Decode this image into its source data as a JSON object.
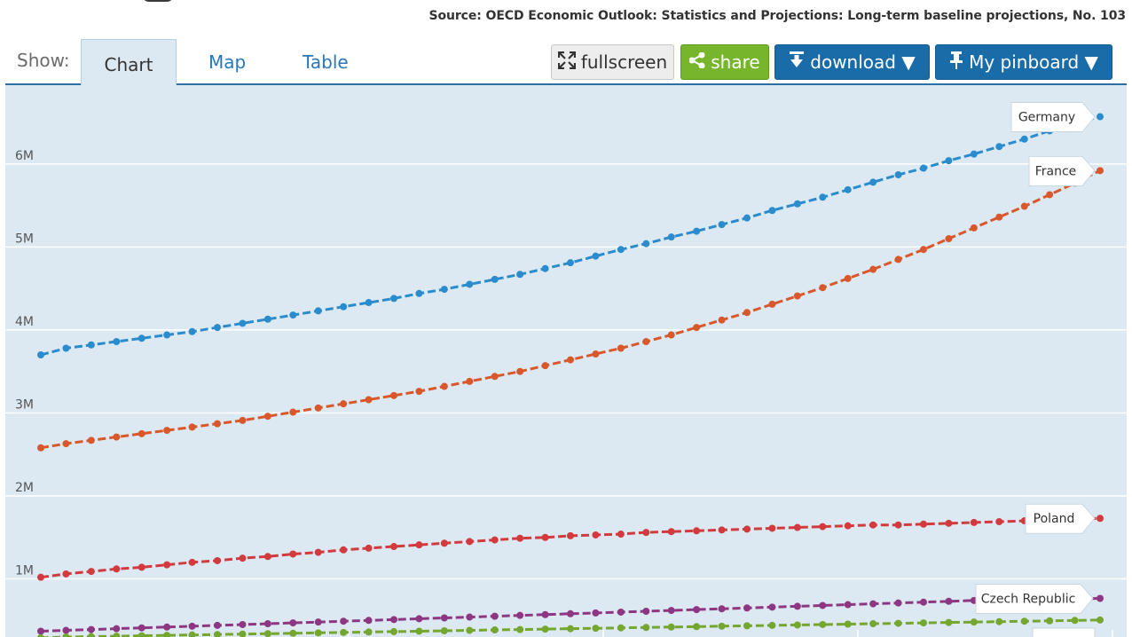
{
  "source": "Source: OECD Economic Outlook: Statistics and Projections: Long-term baseline projections, No. 103",
  "toolbar": {
    "show_label": "Show:",
    "tabs": [
      "Chart",
      "Map",
      "Table"
    ],
    "active_tab": "Chart",
    "fullscreen_label": "fullscreen",
    "share_label": "share",
    "download_label": "download ▼",
    "pinboard_label": "My pinboard ▼"
  },
  "colors": {
    "Germany": "#2a8ccd",
    "France": "#d9582b",
    "Poland": "#d23a3e",
    "Czech Republic": "#8d3782",
    "green-series": "#74a630",
    "plot_background": "#dce9f2",
    "gridline": "#ffffff",
    "download_button": "#1a6ca9",
    "share_button": "#77b52c"
  },
  "chart_data": {
    "type": "line",
    "yticks": [
      "1M",
      "2M",
      "3M",
      "4M",
      "5M",
      "6M"
    ],
    "ytick_values": [
      1000000,
      2000000,
      3000000,
      4000000,
      5000000,
      6000000
    ],
    "ylim": [
      300000,
      6950000
    ],
    "grid": true,
    "legend": "end-of-line labels",
    "points_per_series": 43,
    "series": [
      {
        "name": "Germany",
        "values": [
          3700000,
          3780000,
          3820000,
          3860000,
          3900000,
          3940000,
          3980000,
          4030000,
          4080000,
          4130000,
          4180000,
          4230000,
          4280000,
          4330000,
          4380000,
          4440000,
          4490000,
          4550000,
          4610000,
          4670000,
          4740000,
          4810000,
          4890000,
          4970000,
          5040000,
          5120000,
          5190000,
          5270000,
          5350000,
          5440000,
          5520000,
          5600000,
          5690000,
          5780000,
          5870000,
          5950000,
          6040000,
          6120000,
          6210000,
          6300000,
          6400000,
          6490000,
          6570000
        ]
      },
      {
        "name": "France",
        "values": [
          2580000,
          2630000,
          2670000,
          2710000,
          2750000,
          2790000,
          2830000,
          2870000,
          2910000,
          2960000,
          3010000,
          3060000,
          3110000,
          3160000,
          3210000,
          3260000,
          3320000,
          3380000,
          3440000,
          3500000,
          3570000,
          3640000,
          3710000,
          3780000,
          3860000,
          3940000,
          4030000,
          4120000,
          4210000,
          4310000,
          4410000,
          4510000,
          4620000,
          4730000,
          4850000,
          4970000,
          5100000,
          5230000,
          5360000,
          5490000,
          5630000,
          5770000,
          5920000
        ]
      },
      {
        "name": "Poland",
        "values": [
          1020000,
          1060000,
          1090000,
          1120000,
          1140000,
          1170000,
          1200000,
          1220000,
          1250000,
          1270000,
          1300000,
          1320000,
          1350000,
          1370000,
          1390000,
          1410000,
          1430000,
          1450000,
          1470000,
          1490000,
          1500000,
          1520000,
          1530000,
          1540000,
          1560000,
          1570000,
          1580000,
          1590000,
          1600000,
          1610000,
          1620000,
          1630000,
          1640000,
          1650000,
          1650000,
          1660000,
          1670000,
          1680000,
          1690000,
          1700000,
          1710000,
          1720000,
          1730000
        ]
      },
      {
        "name": "Czech Republic",
        "values": [
          370000,
          380000,
          390000,
          400000,
          410000,
          420000,
          430000,
          440000,
          450000,
          460000,
          470000,
          480000,
          490000,
          500000,
          510000,
          520000,
          530000,
          540000,
          550000,
          560000,
          570000,
          580000,
          590000,
          600000,
          610000,
          620000,
          630000,
          640000,
          650000,
          660000,
          670000,
          680000,
          690000,
          700000,
          710000,
          720000,
          730000,
          740000,
          745000,
          750000,
          755000,
          760000,
          765000
        ]
      },
      {
        "values": [
          290000,
          300000,
          305000,
          310000,
          315000,
          320000,
          325000,
          330000,
          335000,
          340000,
          345000,
          350000,
          355000,
          360000,
          365000,
          370000,
          375000,
          380000,
          385000,
          390000,
          395000,
          400000,
          405000,
          410000,
          415000,
          420000,
          425000,
          430000,
          435000,
          440000,
          445000,
          450000,
          455000,
          460000,
          465000,
          470000,
          475000,
          480000,
          485000,
          490000,
          495000,
          500000,
          505000
        ]
      }
    ]
  }
}
